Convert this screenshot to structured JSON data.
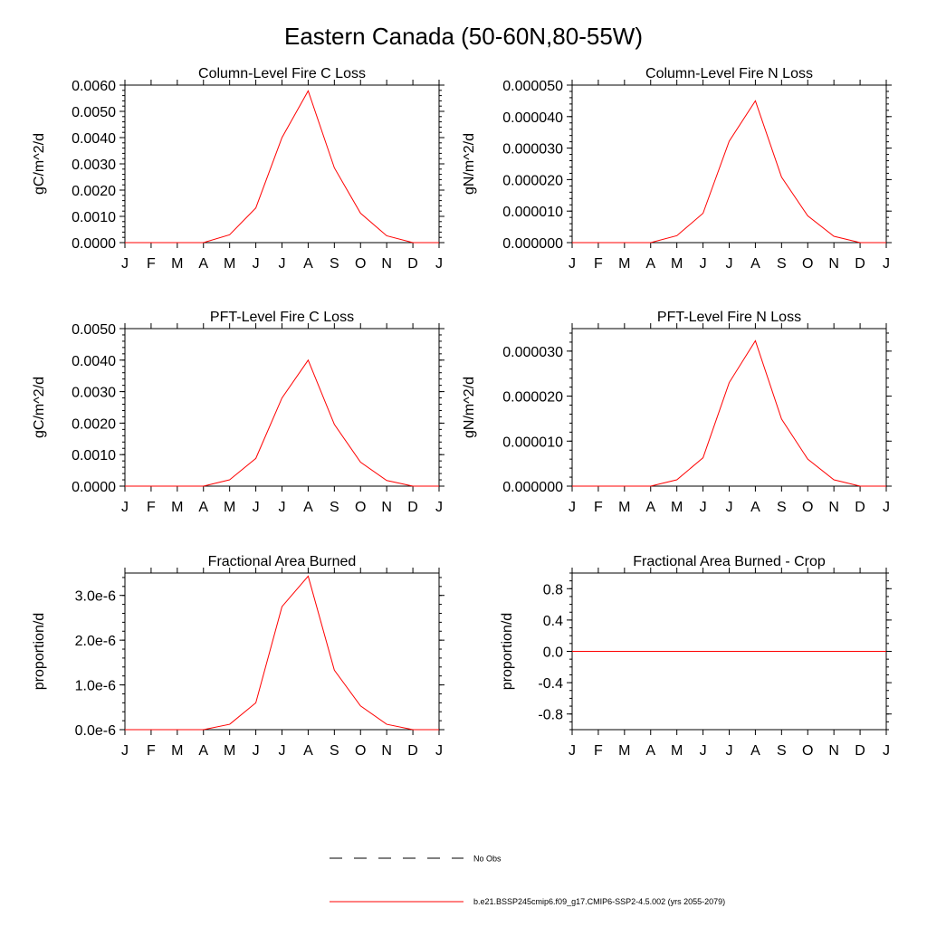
{
  "figure": {
    "title": "Eastern Canada (50-60N,80-55W)"
  },
  "months": [
    "J",
    "F",
    "M",
    "A",
    "M",
    "J",
    "J",
    "A",
    "S",
    "O",
    "N",
    "D",
    "J"
  ],
  "legend": [
    {
      "label": "No Obs",
      "style": "dashed",
      "color": "#000000"
    },
    {
      "label": "b.e21.BSSP245cmip6.f09_g17.CMIP6-SSP2-4.5.002 (yrs 2055-2079)",
      "style": "solid",
      "color": "#ff0000"
    }
  ],
  "series_color": "#ff0000",
  "chart_data": [
    {
      "type": "line",
      "title": "Column-Level Fire C Loss",
      "ylabel": "gC/m^2/d",
      "ylim": [
        0,
        0.006
      ],
      "yticks": [
        0,
        0.001,
        0.002,
        0.003,
        0.004,
        0.005,
        0.006
      ],
      "ytick_labels": [
        "0.0000",
        "0.0010",
        "0.0020",
        "0.0030",
        "0.0040",
        "0.0050",
        "0.0060"
      ],
      "ytick_minor_step": 0.0002,
      "values": [
        0,
        0,
        0,
        0,
        0.0003,
        0.00132,
        0.004,
        0.00578,
        0.00285,
        0.00112,
        0.00026,
        0,
        0
      ]
    },
    {
      "type": "line",
      "title": "Column-Level Fire N Loss",
      "ylabel": "gN/m^2/d",
      "ylim": [
        0,
        5e-05
      ],
      "yticks": [
        0,
        1e-05,
        2e-05,
        3e-05,
        4e-05,
        5e-05
      ],
      "ytick_labels": [
        "0.000000",
        "0.000010",
        "0.000020",
        "0.000030",
        "0.000040",
        "0.000050"
      ],
      "ytick_minor_step": 2e-06,
      "values": [
        0,
        0,
        0,
        0,
        2.2e-06,
        9.3e-06,
        3.22e-05,
        4.5e-05,
        2.08e-05,
        8.5e-06,
        2e-06,
        0,
        0
      ]
    },
    {
      "type": "line",
      "title": "PFT-Level Fire C Loss",
      "ylabel": "gC/m^2/d",
      "ylim": [
        0,
        0.005
      ],
      "yticks": [
        0,
        0.001,
        0.002,
        0.003,
        0.004,
        0.005
      ],
      "ytick_labels": [
        "0.0000",
        "0.0010",
        "0.0020",
        "0.0030",
        "0.0040",
        "0.0050"
      ],
      "ytick_minor_step": 0.0002,
      "values": [
        0,
        0,
        0,
        0,
        0.0002,
        0.00088,
        0.0028,
        0.004,
        0.00196,
        0.00076,
        0.00018,
        0,
        0
      ]
    },
    {
      "type": "line",
      "title": "PFT-Level Fire N Loss",
      "ylabel": "gN/m^2/d",
      "ylim": [
        0,
        3.5e-05
      ],
      "yticks": [
        0,
        1e-05,
        2e-05,
        3e-05
      ],
      "ytick_labels": [
        "0.000000",
        "0.000010",
        "0.000020",
        "0.000030"
      ],
      "ytick_minor_step": 2e-06,
      "values": [
        0,
        0,
        0,
        0,
        1.4e-06,
        6.3e-06,
        2.3e-05,
        3.23e-05,
        1.49e-05,
        6e-06,
        1.4e-06,
        0,
        0
      ]
    },
    {
      "type": "line",
      "title": "Fractional Area Burned",
      "ylabel": "proportion/d",
      "ylim": [
        0,
        3.5e-06
      ],
      "yticks": [
        0,
        1e-06,
        2e-06,
        3e-06
      ],
      "ytick_labels": [
        "0.0e-6",
        "1.0e-6",
        "2.0e-6",
        "3.0e-6"
      ],
      "ytick_minor_step": 2e-07,
      "values": [
        0,
        0,
        0,
        0,
        1.2e-07,
        6e-07,
        2.75e-06,
        3.43e-06,
        1.33e-06,
        5.3e-07,
        1.2e-07,
        0,
        0
      ]
    },
    {
      "type": "line",
      "title": "Fractional Area Burned - Crop",
      "ylabel": "proportion/d",
      "ylim": [
        -1,
        1
      ],
      "yticks": [
        -0.8,
        -0.4,
        0,
        0.4,
        0.8
      ],
      "ytick_labels": [
        "-0.8",
        "-0.4",
        "0.0",
        "0.4",
        "0.8"
      ],
      "ytick_minor_step": 0.1,
      "values": [
        0,
        0,
        0,
        0,
        0,
        0,
        0,
        0,
        0,
        0,
        0,
        0,
        0
      ]
    }
  ]
}
